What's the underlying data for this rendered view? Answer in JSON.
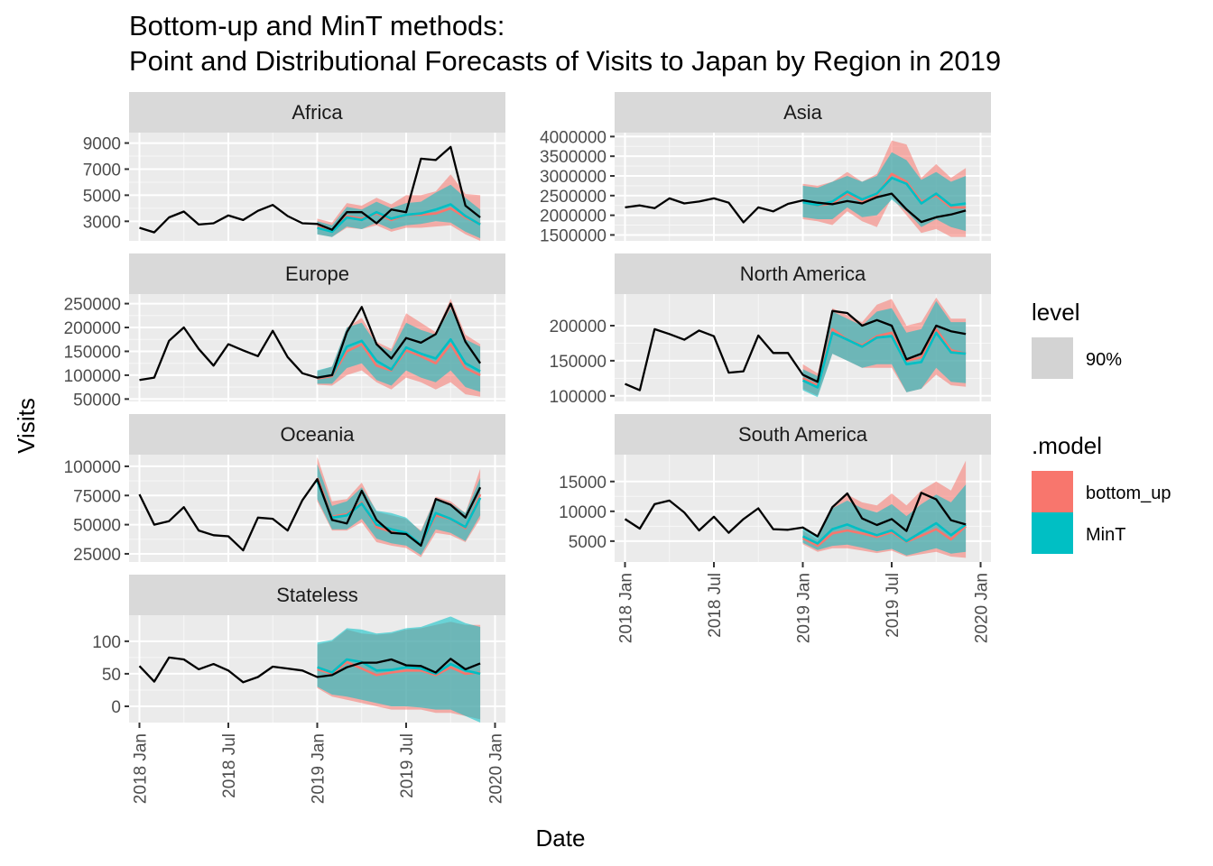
{
  "chart_data": {
    "type": "line",
    "title": "Bottom-up and MinT methods:",
    "subtitle": "Point and Distributional Forecasts of Visits to Japan by Region in 2019",
    "xlabel": "Date",
    "ylabel": "Visits",
    "x_ticks": [
      "2018 Jan",
      "2018 Jul",
      "2019 Jan",
      "2019 Jul",
      "2020 Jan"
    ],
    "observed_months": [
      "2018-01",
      "2018-02",
      "2018-03",
      "2018-04",
      "2018-05",
      "2018-06",
      "2018-07",
      "2018-08",
      "2018-09",
      "2018-10",
      "2018-11",
      "2018-12",
      "2019-01",
      "2019-02",
      "2019-03",
      "2019-04",
      "2019-05",
      "2019-06",
      "2019-07",
      "2019-08",
      "2019-09",
      "2019-10",
      "2019-11",
      "2019-12"
    ],
    "forecast_months": [
      "2019-01",
      "2019-02",
      "2019-03",
      "2019-04",
      "2019-05",
      "2019-06",
      "2019-07",
      "2019-08",
      "2019-09",
      "2019-10",
      "2019-11",
      "2019-12"
    ],
    "legend": {
      "level_title": "level",
      "level_items": [
        {
          "label": "90%",
          "color": "#d3d3d3"
        }
      ],
      "model_title": ".model",
      "model_items": [
        {
          "label": "bottom_up",
          "color": "#f8766d"
        },
        {
          "label": "MinT",
          "color": "#00bfc4"
        }
      ]
    },
    "panels": [
      {
        "name": "Africa",
        "ylim": [
          1500,
          9800
        ],
        "y_ticks": [
          3000,
          5000,
          7000,
          9000
        ],
        "y_tick_labels": [
          "3000",
          "5000",
          "7000",
          "9000"
        ],
        "observed": [
          2500,
          2150,
          3300,
          3750,
          2750,
          2850,
          3450,
          3100,
          3800,
          4250,
          3400,
          2850,
          2800,
          2350,
          3700,
          3700,
          2850,
          3900,
          3700,
          7800,
          7700,
          8700,
          4200,
          3300
        ],
        "bottom_up": {
          "mean": [
            2600,
            2300,
            3400,
            3200,
            3600,
            3100,
            3500,
            3500,
            3600,
            4000,
            3300,
            2800
          ],
          "lo": [
            2000,
            1800,
            2500,
            2400,
            2700,
            2200,
            2500,
            2500,
            2600,
            2700,
            2000,
            1500
          ],
          "hi": [
            3200,
            2900,
            4400,
            4200,
            4800,
            4300,
            5000,
            5000,
            5300,
            6600,
            5100,
            5000
          ]
        },
        "mint": {
          "mean": [
            2500,
            2200,
            3300,
            3100,
            3700,
            3200,
            3500,
            3600,
            3900,
            4300,
            3400,
            2750
          ],
          "lo": [
            2000,
            1800,
            2600,
            2400,
            2900,
            2400,
            2700,
            2800,
            3000,
            2900,
            2200,
            1700
          ],
          "hi": [
            3000,
            2700,
            4100,
            3900,
            4500,
            4000,
            4400,
            4500,
            5200,
            5800,
            4800,
            3900
          ]
        }
      },
      {
        "name": "Asia",
        "ylim": [
          1350000,
          4100000
        ],
        "y_ticks": [
          1500000,
          2000000,
          2500000,
          3000000,
          3500000,
          4000000
        ],
        "y_tick_labels": [
          "1500000",
          "2000000",
          "2500000",
          "3000000",
          "3500000",
          "4000000"
        ],
        "observed": [
          2200000,
          2250000,
          2180000,
          2430000,
          2300000,
          2350000,
          2430000,
          2320000,
          1820000,
          2200000,
          2100000,
          2290000,
          2380000,
          2320000,
          2280000,
          2360000,
          2300000,
          2460000,
          2550000,
          2150000,
          1830000,
          1950000,
          2020000,
          2120000
        ],
        "bottom_up": {
          "mean": [
            2350000,
            2250000,
            2300000,
            2550000,
            2350000,
            2500000,
            3050000,
            2850000,
            2350000,
            2500000,
            2200000,
            2200000
          ],
          "lo": [
            1900000,
            1850000,
            1750000,
            2100000,
            1850000,
            1700000,
            2450000,
            2000000,
            1550000,
            1650000,
            1450000,
            1450000
          ],
          "hi": [
            2800000,
            2750000,
            2850000,
            3100000,
            2850000,
            3050000,
            3900000,
            3800000,
            2950000,
            3300000,
            2950000,
            3200000
          ]
        },
        "mint": {
          "mean": [
            2330000,
            2260000,
            2350000,
            2600000,
            2400000,
            2550000,
            2950000,
            2800000,
            2300000,
            2550000,
            2250000,
            2300000
          ],
          "lo": [
            1950000,
            1900000,
            1900000,
            2200000,
            1950000,
            2000000,
            2400000,
            2100000,
            1700000,
            1900000,
            1700000,
            1600000
          ],
          "hi": [
            2750000,
            2700000,
            2850000,
            3000000,
            2850000,
            3000000,
            3600000,
            3400000,
            2900000,
            3100000,
            2850000,
            3000000
          ]
        }
      },
      {
        "name": "Europe",
        "ylim": [
          45000,
          270000
        ],
        "y_ticks": [
          50000,
          100000,
          150000,
          200000,
          250000
        ],
        "y_tick_labels": [
          "50000",
          "100000",
          "150000",
          "200000",
          "250000"
        ],
        "observed": [
          90000,
          95000,
          172000,
          200000,
          155000,
          120000,
          165000,
          152000,
          140000,
          193000,
          138000,
          104000,
          95000,
          100000,
          190000,
          243000,
          165000,
          135000,
          178000,
          168000,
          186000,
          250000,
          170000,
          125000
        ],
        "bottom_up": {
          "mean": [
            93000,
            98000,
            150000,
            165000,
            120000,
            110000,
            152000,
            140000,
            125000,
            165000,
            115000,
            100000
          ],
          "lo": [
            80000,
            78000,
            100000,
            110000,
            85000,
            70000,
            95000,
            85000,
            70000,
            85000,
            60000,
            55000
          ],
          "hi": [
            108000,
            118000,
            200000,
            220000,
            170000,
            155000,
            230000,
            210000,
            190000,
            260000,
            185000,
            165000
          ]
        },
        "mint": {
          "mean": [
            95000,
            100000,
            160000,
            172000,
            130000,
            112000,
            158000,
            145000,
            135000,
            175000,
            125000,
            108000
          ],
          "lo": [
            82000,
            82000,
            115000,
            125000,
            90000,
            78000,
            110000,
            95000,
            85000,
            110000,
            75000,
            65000
          ],
          "hi": [
            110000,
            118000,
            200000,
            210000,
            165000,
            150000,
            210000,
            195000,
            185000,
            240000,
            175000,
            160000
          ]
        }
      },
      {
        "name": "North America",
        "ylim": [
          92000,
          245000
        ],
        "y_ticks": [
          100000,
          150000,
          200000
        ],
        "y_tick_labels": [
          "100000",
          "150000",
          "200000"
        ],
        "observed": [
          117000,
          108000,
          195000,
          188000,
          180000,
          193000,
          185000,
          133000,
          135000,
          186000,
          161000,
          161000,
          130000,
          120000,
          221000,
          218000,
          200000,
          208000,
          200000,
          152000,
          160000,
          200000,
          192000,
          188000
        ],
        "bottom_up": {
          "mean": [
            125000,
            115000,
            195000,
            180000,
            172000,
            185000,
            190000,
            150000,
            155000,
            195000,
            165000,
            160000
          ],
          "lo": [
            110000,
            100000,
            160000,
            150000,
            140000,
            140000,
            140000,
            105000,
            110000,
            130000,
            115000,
            113000
          ],
          "hi": [
            145000,
            132000,
            225000,
            215000,
            205000,
            230000,
            238000,
            200000,
            205000,
            240000,
            210000,
            210000
          ]
        },
        "mint": {
          "mean": [
            122000,
            112000,
            190000,
            180000,
            170000,
            183000,
            185000,
            145000,
            148000,
            190000,
            162000,
            160000
          ],
          "lo": [
            108000,
            98000,
            160000,
            150000,
            140000,
            145000,
            145000,
            105000,
            110000,
            140000,
            120000,
            118000
          ],
          "hi": [
            138000,
            128000,
            220000,
            210000,
            200000,
            220000,
            225000,
            190000,
            195000,
            235000,
            205000,
            205000
          ]
        }
      },
      {
        "name": "Oceania",
        "ylim": [
          18000,
          110000
        ],
        "y_ticks": [
          25000,
          50000,
          75000,
          100000
        ],
        "y_tick_labels": [
          "25000",
          "50000",
          "75000",
          "100000"
        ],
        "observed": [
          76000,
          50000,
          53000,
          65000,
          45000,
          41000,
          40000,
          28000,
          56000,
          55000,
          45000,
          71000,
          89000,
          54000,
          51000,
          79000,
          54000,
          43000,
          42000,
          32000,
          72000,
          67000,
          56000,
          82000
        ],
        "bottom_up": {
          "mean": [
            90000,
            57000,
            59000,
            69000,
            48000,
            44000,
            42000,
            33000,
            58000,
            55000,
            47000,
            76000
          ],
          "lo": [
            70000,
            45000,
            45000,
            52000,
            35000,
            32000,
            30000,
            22000,
            43000,
            41000,
            35000,
            55000
          ],
          "hi": [
            108000,
            70000,
            72000,
            86000,
            61000,
            58000,
            55000,
            45000,
            74000,
            70000,
            60000,
            98000
          ]
        },
        "mint": {
          "mean": [
            87000,
            56000,
            58000,
            68000,
            50000,
            46000,
            43000,
            33000,
            60000,
            55000,
            48000,
            73000
          ],
          "lo": [
            72000,
            46000,
            46000,
            55000,
            38000,
            34000,
            32000,
            24000,
            46000,
            43000,
            36000,
            58000
          ],
          "hi": [
            102000,
            66000,
            70000,
            82000,
            62000,
            60000,
            56000,
            44000,
            73000,
            68000,
            60000,
            90000
          ]
        }
      },
      {
        "name": "South America",
        "ylim": [
          1500,
          19500
        ],
        "y_ticks": [
          5000,
          10000,
          15000
        ],
        "y_tick_labels": [
          "5000",
          "10000",
          "15000"
        ],
        "observed": [
          8700,
          7100,
          11200,
          11800,
          9800,
          6800,
          9100,
          6400,
          8700,
          10500,
          7000,
          6900,
          7300,
          5800,
          10700,
          13000,
          8800,
          7700,
          8700,
          6700,
          13100,
          12000,
          8500,
          7800
        ],
        "bottom_up": {
          "mean": [
            5500,
            4200,
            6300,
            6800,
            6300,
            5700,
            6500,
            4900,
            5900,
            7000,
            5300,
            7500
          ],
          "lo": [
            4500,
            3200,
            3800,
            3800,
            3400,
            3000,
            3400,
            2400,
            2800,
            3200,
            2400,
            2200
          ],
          "hi": [
            6800,
            5200,
            10800,
            12800,
            11500,
            11000,
            13000,
            11000,
            13500,
            15000,
            13500,
            18500
          ]
        },
        "mint": {
          "mean": [
            5800,
            4600,
            7000,
            7800,
            6800,
            6000,
            6800,
            5000,
            6500,
            8000,
            6000,
            7800
          ],
          "lo": [
            4700,
            3500,
            4200,
            4400,
            3900,
            3300,
            3700,
            2600,
            3200,
            3800,
            2900,
            3200
          ],
          "hi": [
            7200,
            5800,
            10500,
            11800,
            10500,
            9800,
            11200,
            9200,
            11200,
            12800,
            11500,
            14500
          ]
        }
      },
      {
        "name": "Stateless",
        "ylim": [
          -25,
          140
        ],
        "y_ticks": [
          0,
          50,
          100
        ],
        "y_tick_labels": [
          "0",
          "50",
          "100"
        ],
        "observed": [
          62,
          38,
          75,
          72,
          57,
          65,
          55,
          37,
          45,
          61,
          58,
          55,
          45,
          48,
          60,
          67,
          67,
          72,
          63,
          62,
          52,
          73,
          57,
          66
        ],
        "bottom_up": {
          "mean": [
            57,
            50,
            68,
            58,
            48,
            52,
            55,
            55,
            48,
            60,
            50,
            52
          ],
          "lo": [
            28,
            15,
            10,
            5,
            0,
            -5,
            -5,
            -5,
            -10,
            -10,
            -15,
            -20
          ],
          "hi": [
            95,
            100,
            118,
            112,
            110,
            112,
            118,
            120,
            125,
            130,
            125,
            125
          ]
        },
        "mint": {
          "mean": [
            60,
            52,
            72,
            68,
            55,
            56,
            60,
            58,
            50,
            65,
            55,
            50
          ],
          "lo": [
            30,
            18,
            15,
            10,
            5,
            0,
            0,
            -2,
            -5,
            -5,
            -15,
            -25
          ],
          "hi": [
            98,
            102,
            120,
            118,
            112,
            114,
            120,
            122,
            130,
            138,
            128,
            122
          ]
        }
      }
    ]
  }
}
